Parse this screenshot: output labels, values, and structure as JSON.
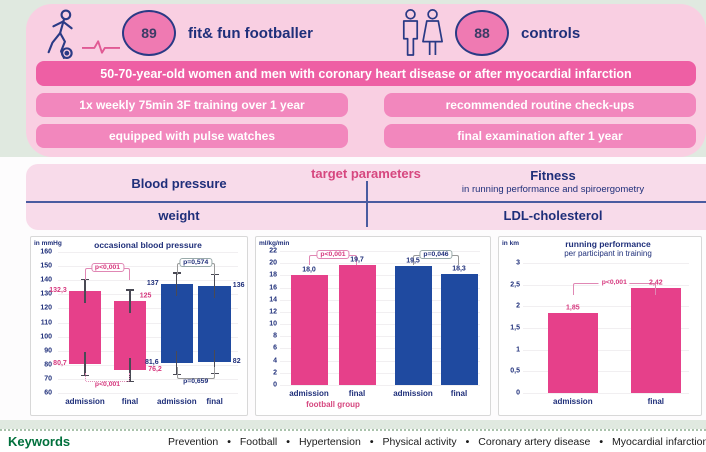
{
  "header": {
    "footballer_group": {
      "count": "89",
      "label": "fit& fun footballer"
    },
    "control_group": {
      "count": "88",
      "label": "controls"
    }
  },
  "study": {
    "population_banner": "50-70-year-old women and men with coronary heart disease or after myocardial infarction",
    "intervention_banner": "1x weekly 75min 3F training over 1 year",
    "control_banner": "recommended routine check-ups",
    "equipment_banner": "equipped with pulse watches",
    "examination_banner": "final examination after 1 year"
  },
  "target_parameters": {
    "title": "target parameters",
    "blood_pressure": "Blood pressure",
    "fitness": "Fitness",
    "fitness_sub": "in running performance and spiroergometry",
    "weight": "weight",
    "ldl": "LDL-cholesterol"
  },
  "chart_data": [
    {
      "type": "bar",
      "title": "occasional blood pressure",
      "ylabel": "in mmHg",
      "ylim": [
        60,
        160
      ],
      "yticks": [
        "160",
        "150",
        "140",
        "130",
        "120",
        "110",
        "100",
        "90",
        "80",
        "70",
        "60"
      ],
      "note": "floating bars span diastolic (low) to systolic (high) pressure, with error whiskers",
      "groups": [
        {
          "name": "football group",
          "color": "#e6408a",
          "bars": [
            {
              "category": "admission",
              "low": 80.7,
              "high": 132.3,
              "low_label": "80,7",
              "high_label": "132,3"
            },
            {
              "category": "final",
              "low": 76.2,
              "high": 125,
              "low_label": "76,2",
              "high_label": "125"
            }
          ],
          "p_top": "p<0,001",
          "p_bottom": "p<0,001"
        },
        {
          "name": "controls",
          "color": "#1f4aa0",
          "bars": [
            {
              "category": "admission",
              "low": 81.6,
              "high": 137,
              "low_label": "81,6",
              "high_label": "137"
            },
            {
              "category": "final",
              "low": 82,
              "high": 136,
              "low_label": "82",
              "high_label": "136"
            }
          ],
          "p_top": "p=0,574",
          "p_bottom": "p=0,659"
        }
      ]
    },
    {
      "type": "bar",
      "title": "",
      "ylabel": "ml/kg/min",
      "ylim": [
        0,
        22
      ],
      "yticks": [
        "22",
        "20",
        "18",
        "16",
        "14",
        "12",
        "10",
        "8",
        "6",
        "4",
        "2",
        "0"
      ],
      "groups": [
        {
          "name": "football group",
          "group_label": "football group",
          "color": "#e6408a",
          "categories": [
            "admission",
            "final"
          ],
          "values": [
            18.0,
            19.7
          ],
          "value_labels": [
            "18,0",
            "19,7"
          ],
          "p": "p<0,001"
        },
        {
          "name": "controls",
          "color": "#1f4aa0",
          "categories": [
            "admission",
            "final"
          ],
          "values": [
            19.5,
            18.3
          ],
          "value_labels": [
            "19,5",
            "18,3"
          ],
          "p": "p=0,046"
        }
      ]
    },
    {
      "type": "bar",
      "title": "running performance",
      "subtitle": "per participant in training",
      "ylabel": "in km",
      "ylim": [
        0,
        3
      ],
      "yticks": [
        "3",
        "2,5",
        "2",
        "1,5",
        "1",
        "0,5",
        "0"
      ],
      "categories": [
        "admission",
        "final"
      ],
      "values": [
        1.85,
        2.42
      ],
      "value_labels": [
        "1,85",
        "2,42"
      ],
      "p": "p<0,001",
      "color": "#e6408a"
    }
  ],
  "keywords": {
    "label": "Keywords",
    "items": [
      "Prevention",
      "Football",
      "Hypertension",
      "Physical activity",
      "Coronary artery disease",
      "Myocardial infarction"
    ]
  },
  "colors": {
    "bar_pink": "#e6408a",
    "bar_blue": "#1f4aa0",
    "navy_text": "#1f2f7a",
    "pink_accent": "#d6477f",
    "keywords_green": "#00703c"
  }
}
